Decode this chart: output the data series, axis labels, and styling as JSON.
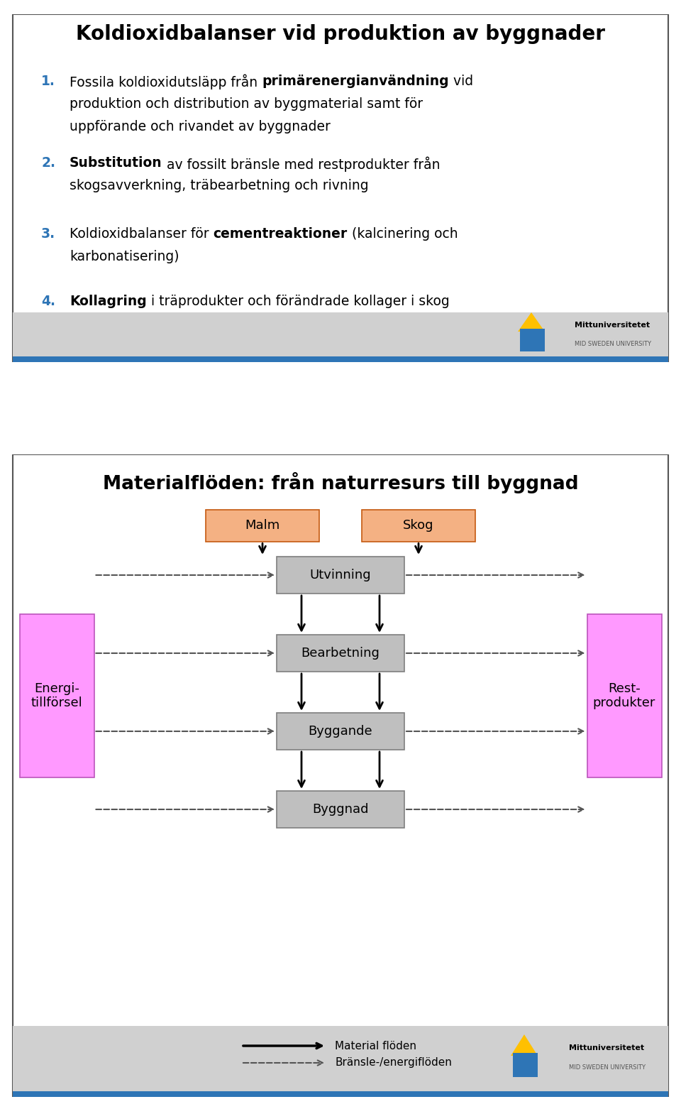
{
  "slide1": {
    "title": "Koldioxidbalanser vid produktion av byggnader",
    "items": [
      {
        "num": "1.",
        "num_color": "#2E75B6",
        "lines": [
          [
            {
              "text": "Fossila koldioxidutsläpp från ",
              "bold": false
            },
            {
              "text": "primärenergianvändning",
              "bold": true
            },
            {
              "text": " vid",
              "bold": false
            }
          ],
          [
            {
              "text": "produktion och distribution av byggmaterial samt för",
              "bold": false
            }
          ],
          [
            {
              "text": "uppförande och rivandet av byggnader",
              "bold": false
            }
          ]
        ]
      },
      {
        "num": "2.",
        "num_color": "#2E75B6",
        "lines": [
          [
            {
              "text": "Substitution",
              "bold": true
            },
            {
              "text": " av fossilt bränsle med restprodukter från",
              "bold": false
            }
          ],
          [
            {
              "text": "skogsavverkning, träbearbetning och rivning",
              "bold": false
            }
          ]
        ]
      },
      {
        "num": "3.",
        "num_color": "#2E75B6",
        "lines": [
          [
            {
              "text": "Koldioxidbalanser för ",
              "bold": false
            },
            {
              "text": "cementreaktioner",
              "bold": true
            },
            {
              "text": " (kalcinering och",
              "bold": false
            }
          ],
          [
            {
              "text": "karbonatisering)",
              "bold": false
            }
          ]
        ]
      },
      {
        "num": "4.",
        "num_color": "#2E75B6",
        "lines": [
          [
            {
              "text": "Kollagring",
              "bold": true
            },
            {
              "text": " i träprodukter och förändrade kollager i skog",
              "bold": false
            }
          ]
        ]
      }
    ],
    "border_color": "#555555",
    "bg_color": "#FFFFFF",
    "footer_bg": "#D0D0D0",
    "footer_line_color": "#2E75B6"
  },
  "slide2": {
    "title": "Materialflöden: från naturresurs till byggnad",
    "border_color": "#555555",
    "bg_color": "#FFFFFF",
    "footer_bg": "#D0D0D0",
    "footer_line_color": "#2E75B6",
    "orange_color": "#F4B183",
    "orange_border": "#C55A11",
    "grey_color": "#BFBFBF",
    "grey_border": "#7F7F7F",
    "pink_color": "#FF99FF",
    "pink_border": "#BB55BB",
    "legend_solid": "Material flöden",
    "legend_dashed": "Bränsle-/energiflöden"
  }
}
